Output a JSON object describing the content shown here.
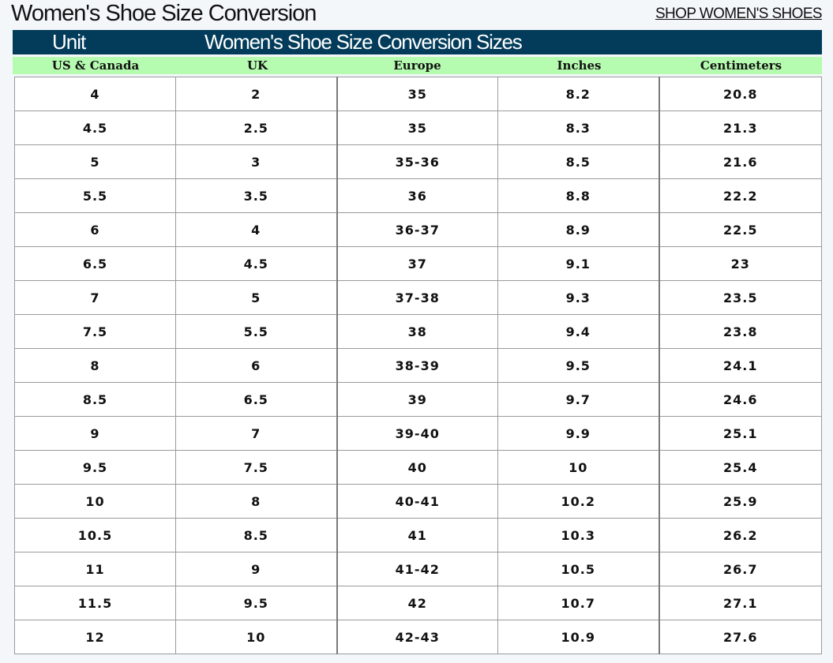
{
  "header": {
    "title": "Women's Shoe Size Conversion",
    "shop_link": "SHOP WOMEN'S SHOES"
  },
  "title_bar": {
    "unit_label": "Unit",
    "sizes_label": "Women's Shoe Size Conversion Sizes"
  },
  "columns": [
    "US & Canada",
    "UK",
    "Europe",
    "Inches",
    "Centimeters"
  ],
  "rows": [
    [
      "4",
      "2",
      "35",
      "8.2",
      "20.8"
    ],
    [
      "4.5",
      "2.5",
      "35",
      "8.3",
      "21.3"
    ],
    [
      "5",
      "3",
      "35-36",
      "8.5",
      "21.6"
    ],
    [
      "5.5",
      "3.5",
      "36",
      "8.8",
      "22.2"
    ],
    [
      "6",
      "4",
      "36-37",
      "8.9",
      "22.5"
    ],
    [
      "6.5",
      "4.5",
      "37",
      "9.1",
      "23"
    ],
    [
      "7",
      "5",
      "37-38",
      "9.3",
      "23.5"
    ],
    [
      "7.5",
      "5.5",
      "38",
      "9.4",
      "23.8"
    ],
    [
      "8",
      "6",
      "38-39",
      "9.5",
      "24.1"
    ],
    [
      "8.5",
      "6.5",
      "39",
      "9.7",
      "24.6"
    ],
    [
      "9",
      "7",
      "39-40",
      "9.9",
      "25.1"
    ],
    [
      "9.5",
      "7.5",
      "40",
      "10",
      "25.4"
    ],
    [
      "10",
      "8",
      "40-41",
      "10.2",
      "25.9"
    ],
    [
      "10.5",
      "8.5",
      "41",
      "10.3",
      "26.2"
    ],
    [
      "11",
      "9",
      "41-42",
      "10.5",
      "26.7"
    ],
    [
      "11.5",
      "9.5",
      "42",
      "10.7",
      "27.1"
    ],
    [
      "12",
      "10",
      "42-43",
      "10.9",
      "27.6"
    ]
  ],
  "colors": {
    "title_bar_bg": "#023c5a",
    "column_header_bg": "#b6fcb0",
    "page_bg": "#f4f7fa"
  }
}
